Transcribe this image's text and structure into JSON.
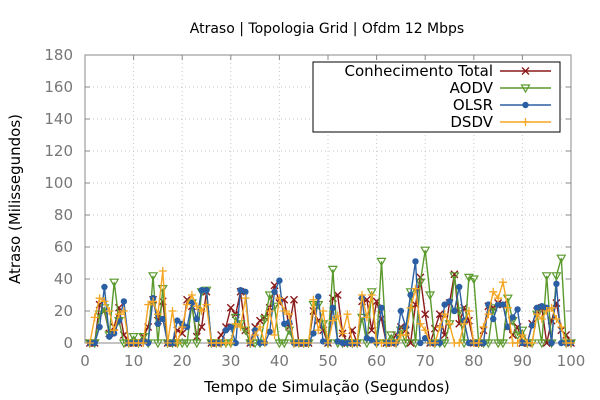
{
  "chart_data": {
    "type": "line",
    "title": "Atraso | Topologia Grid | Ofdm 12 Mbps",
    "xlabel": "Tempo de Simulação (Segundos)",
    "ylabel": "Atraso (Milissegundos)",
    "xlim": [
      0,
      100
    ],
    "ylim": [
      0,
      180
    ],
    "xticks": [
      0,
      10,
      20,
      30,
      40,
      50,
      60,
      70,
      80,
      90,
      100
    ],
    "yticks": [
      0,
      20,
      40,
      60,
      80,
      100,
      120,
      140,
      160,
      180
    ],
    "grid": true,
    "legend_position": "top-right",
    "x": [
      1,
      2,
      3,
      4,
      5,
      6,
      7,
      8,
      9,
      10,
      11,
      12,
      13,
      14,
      15,
      16,
      17,
      18,
      19,
      20,
      21,
      22,
      23,
      24,
      25,
      26,
      27,
      28,
      29,
      30,
      31,
      32,
      33,
      34,
      35,
      36,
      37,
      38,
      39,
      40,
      41,
      42,
      43,
      44,
      45,
      46,
      47,
      48,
      49,
      50,
      51,
      52,
      53,
      54,
      55,
      56,
      57,
      58,
      59,
      60,
      61,
      62,
      63,
      64,
      65,
      66,
      67,
      68,
      69,
      70,
      71,
      72,
      73,
      74,
      75,
      76,
      77,
      78,
      79,
      80,
      81,
      82,
      83,
      84,
      85,
      86,
      87,
      88,
      89,
      90,
      91,
      92,
      93,
      94,
      95,
      96,
      97,
      98,
      99,
      100
    ],
    "series": [
      {
        "name": "Conhecimento Total",
        "color": "#8b1a1a",
        "marker": "x",
        "values": [
          0,
          0,
          24,
          20,
          6,
          10,
          22,
          5,
          0,
          0,
          0,
          4,
          10,
          27,
          14,
          26,
          0,
          0,
          8,
          6,
          27,
          23,
          4,
          10,
          32,
          0,
          0,
          5,
          10,
          22,
          18,
          32,
          8,
          0,
          10,
          14,
          16,
          22,
          36,
          25,
          27,
          10,
          27,
          0,
          0,
          0,
          20,
          14,
          8,
          0,
          28,
          30,
          6,
          0,
          8,
          0,
          26,
          27,
          8,
          26,
          15,
          0,
          0,
          5,
          10,
          8,
          0,
          24,
          41,
          18,
          0,
          9,
          18,
          5,
          25,
          43,
          12,
          22,
          14,
          0,
          0,
          8,
          23,
          22,
          25,
          24,
          10,
          5,
          10,
          0,
          0,
          12,
          20,
          22,
          0,
          14,
          25,
          8,
          5,
          0
        ]
      },
      {
        "name": "AODV",
        "color": "#5a9a2c",
        "marker": "triangle-down",
        "values": [
          0,
          0,
          18,
          22,
          5,
          38,
          14,
          0,
          0,
          4,
          0,
          4,
          0,
          42,
          0,
          34,
          0,
          0,
          0,
          0,
          0,
          25,
          0,
          32,
          33,
          0,
          0,
          0,
          0,
          0,
          16,
          12,
          8,
          0,
          0,
          0,
          15,
          30,
          23,
          0,
          0,
          8,
          0,
          0,
          0,
          0,
          24,
          24,
          12,
          0,
          46,
          0,
          0,
          0,
          0,
          0,
          16,
          0,
          32,
          0,
          51,
          0,
          5,
          0,
          8,
          0,
          32,
          0,
          38,
          58,
          30,
          0,
          0,
          0,
          12,
          42,
          20,
          0,
          41,
          40,
          0,
          0,
          0,
          22,
          0,
          0,
          28,
          14,
          5,
          8,
          0,
          0,
          18,
          0,
          42,
          0,
          42,
          53,
          0,
          0
        ]
      },
      {
        "name": "OLSR",
        "color": "#2b5fa3",
        "marker": "circle",
        "values": [
          0,
          0,
          10,
          35,
          4,
          6,
          14,
          26,
          0,
          0,
          0,
          1,
          0,
          28,
          12,
          15,
          0,
          0,
          14,
          12,
          10,
          25,
          15,
          33,
          33,
          0,
          0,
          0,
          8,
          10,
          0,
          33,
          32,
          0,
          8,
          0,
          0,
          7,
          32,
          39,
          12,
          13,
          0,
          0,
          0,
          0,
          6,
          29,
          1,
          0,
          22,
          1,
          0,
          0,
          0,
          0,
          28,
          3,
          2,
          0,
          22,
          0,
          0,
          0,
          20,
          10,
          30,
          51,
          0,
          3,
          0,
          0,
          0,
          24,
          26,
          20,
          35,
          14,
          0,
          0,
          0,
          0,
          24,
          15,
          24,
          24,
          10,
          16,
          21,
          0,
          0,
          11,
          22,
          23,
          22,
          0,
          37,
          0,
          0,
          0
        ]
      },
      {
        "name": "DSDV",
        "color": "#f5a623",
        "marker": "plus",
        "values": [
          0,
          16,
          28,
          26,
          20,
          8,
          18,
          20,
          0,
          0,
          0,
          0,
          24,
          26,
          18,
          45,
          0,
          20,
          0,
          10,
          24,
          30,
          23,
          20,
          24,
          0,
          0,
          0,
          0,
          0,
          12,
          10,
          28,
          0,
          5,
          10,
          0,
          20,
          5,
          28,
          20,
          18,
          0,
          0,
          0,
          0,
          27,
          8,
          20,
          0,
          14,
          17,
          6,
          18,
          0,
          0,
          30,
          16,
          30,
          0,
          0,
          0,
          0,
          0,
          5,
          5,
          22,
          34,
          12,
          8,
          0,
          0,
          10,
          18,
          12,
          0,
          0,
          12,
          20,
          0,
          0,
          10,
          18,
          32,
          28,
          38,
          22,
          0,
          0,
          5,
          0,
          0,
          18,
          15,
          20,
          22,
          15,
          10,
          0,
          0
        ]
      }
    ]
  }
}
